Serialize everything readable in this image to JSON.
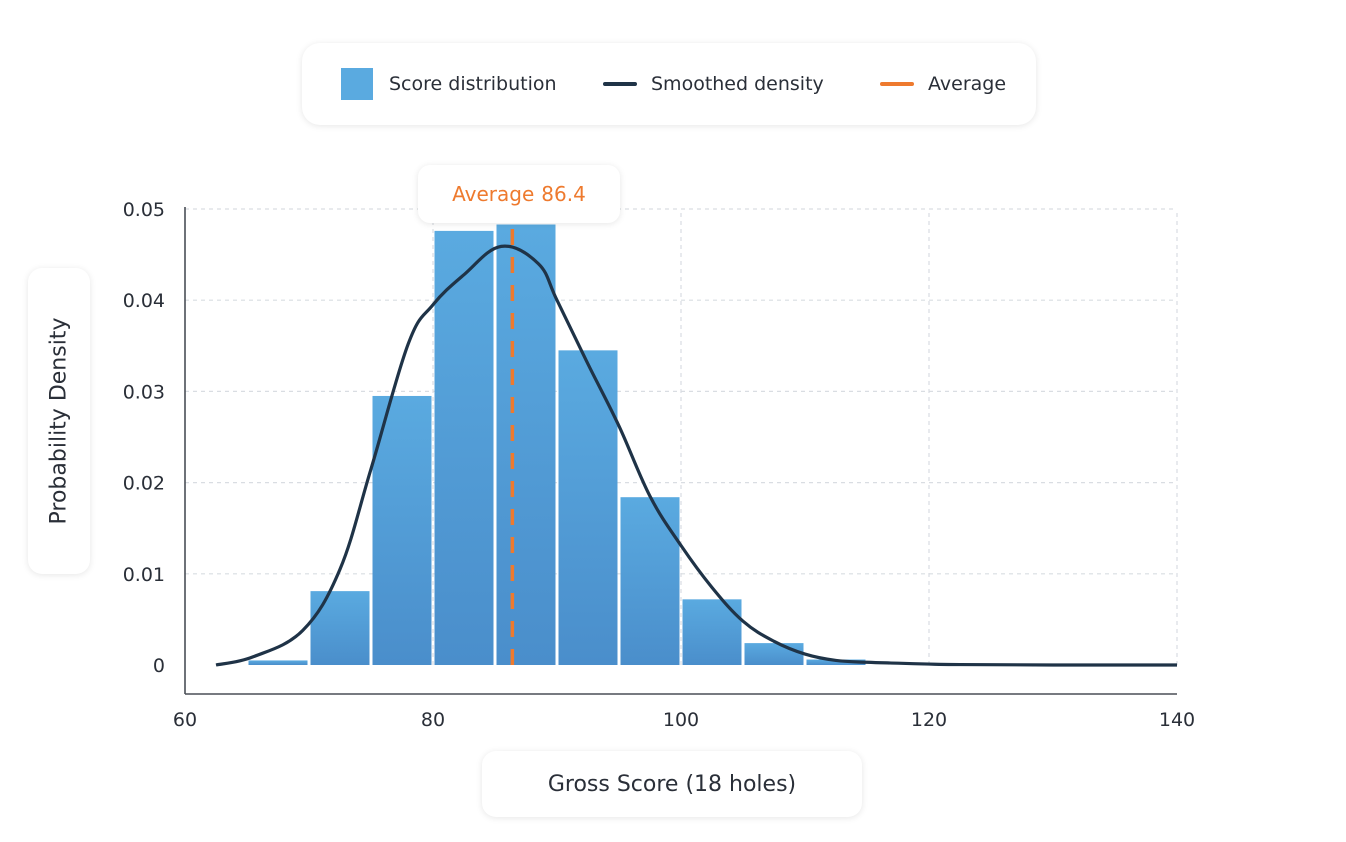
{
  "legend": {
    "histogram": "Score distribution",
    "density": "Smoothed density",
    "average": "Average"
  },
  "annotation": {
    "prefix": "Average",
    "value": "86.4"
  },
  "colors": {
    "bar_top": "#5aaae0",
    "bar_bottom": "#4a8ecb",
    "density_line": "#1f3347",
    "average_line": "#ee7a2e",
    "grid": "#d9dde2",
    "axis": "#4a4f57"
  },
  "chart_data": {
    "type": "bar",
    "xlabel": "Gross Score (18 holes)",
    "ylabel": "Probability Density",
    "xlim": [
      60,
      140
    ],
    "ylim": [
      0,
      0.05
    ],
    "x_ticks": [
      60,
      80,
      100,
      120,
      140
    ],
    "x_tick_labels": [
      "60",
      "80",
      "100",
      "120",
      "140"
    ],
    "y_ticks": [
      0,
      0.01,
      0.02,
      0.03,
      0.04,
      0.05
    ],
    "y_tick_labels": [
      "0",
      "0.01",
      "0.02",
      "0.03",
      "0.04",
      "0.05"
    ],
    "grid": true,
    "legend_position": "top-center",
    "histogram": {
      "bin_edges": [
        65,
        70,
        75,
        80,
        85,
        90,
        95,
        100,
        105,
        110,
        115
      ],
      "values": [
        0.0005,
        0.0081,
        0.0295,
        0.0476,
        0.0483,
        0.0345,
        0.0184,
        0.0072,
        0.0024,
        0.0006
      ]
    },
    "density": {
      "x": [
        62.5,
        65.5,
        69.5,
        72.5,
        75,
        78,
        80,
        82.5,
        85.5,
        88.5,
        90,
        92.5,
        95,
        97.5,
        100,
        102.5,
        105,
        107.5,
        110,
        112.5,
        115,
        117.5,
        120,
        122.5,
        130,
        140
      ],
      "y": [
        0,
        0.0009,
        0.0038,
        0.0105,
        0.0215,
        0.0352,
        0.0395,
        0.0428,
        0.0459,
        0.044,
        0.04,
        0.033,
        0.0262,
        0.0185,
        0.0131,
        0.0085,
        0.0048,
        0.0026,
        0.0012,
        0.0005,
        0.0003,
        0.0002,
        0.0001,
        5e-05,
        0,
        0
      ]
    },
    "average": 86.4
  }
}
